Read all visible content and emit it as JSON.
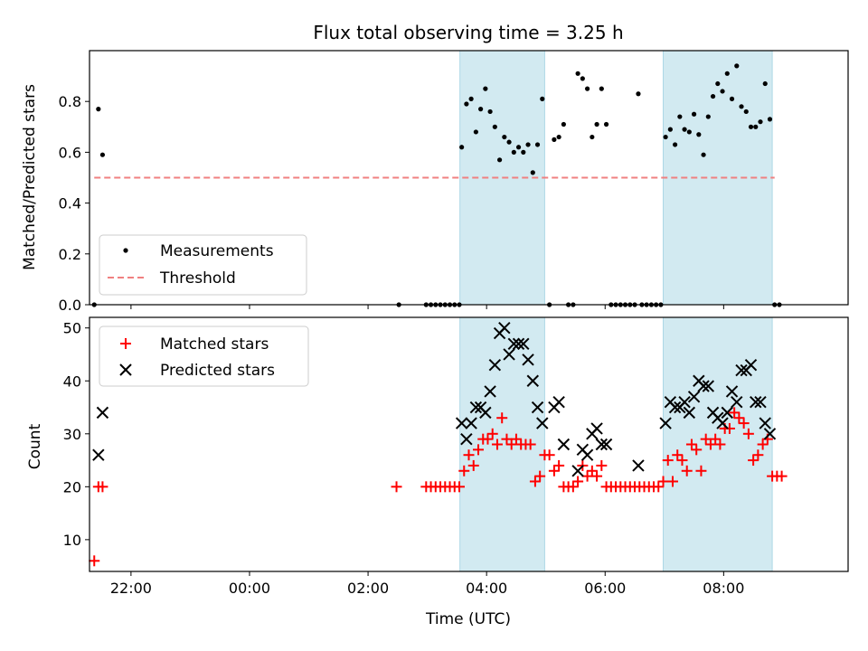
{
  "chart_data": [
    {
      "type": "scatter",
      "title": "Flux total observing time = 3.25 h",
      "ylabel": "Matched/Predicted stars",
      "xlabel": "",
      "xlim": [
        -2.7,
        10.1
      ],
      "ylim": [
        0,
        1.0
      ],
      "y_ticks": [
        0.0,
        0.2,
        0.4,
        0.6,
        0.8
      ],
      "y_tick_labels": [
        "0.0",
        "0.2",
        "0.4",
        "0.6",
        "0.8"
      ],
      "x_ticks": [
        -2,
        0,
        2,
        4,
        6,
        8
      ],
      "grid": false,
      "legend": {
        "placement": "lower-left"
      },
      "shaded_intervals": [
        [
          3.55,
          4.98
        ],
        [
          6.98,
          8.82
        ]
      ],
      "shade_color": "#add8e6",
      "series": [
        {
          "name": "Measurements",
          "marker": "dot",
          "color": "#000000",
          "x": [
            -2.62,
            -2.55,
            -2.48,
            2.52,
            2.98,
            3.06,
            3.14,
            3.22,
            3.3,
            3.38,
            3.46,
            3.54,
            3.58,
            3.66,
            3.74,
            3.82,
            3.9,
            3.98,
            4.06,
            4.14,
            4.22,
            4.3,
            4.38,
            4.46,
            4.54,
            4.62,
            4.7,
            4.78,
            4.86,
            4.94,
            5.06,
            5.14,
            5.22,
            5.3,
            5.38,
            5.46,
            5.54,
            5.62,
            5.7,
            5.78,
            5.86,
            5.94,
            6.02,
            6.1,
            6.18,
            6.26,
            6.34,
            6.42,
            6.5,
            6.56,
            6.62,
            6.7,
            6.78,
            6.86,
            6.94,
            7.02,
            7.1,
            7.18,
            7.26,
            7.34,
            7.42,
            7.5,
            7.58,
            7.66,
            7.74,
            7.82,
            7.9,
            7.98,
            8.06,
            8.14,
            8.22,
            8.3,
            8.38,
            8.46,
            8.54,
            8.62,
            8.7,
            8.78,
            8.86,
            8.94
          ],
          "y": [
            0.0,
            0.77,
            0.59,
            0.0,
            0.0,
            0.0,
            0.0,
            0.0,
            0.0,
            0.0,
            0.0,
            0.0,
            0.62,
            0.79,
            0.81,
            0.68,
            0.77,
            0.85,
            0.76,
            0.7,
            0.57,
            0.66,
            0.64,
            0.6,
            0.62,
            0.6,
            0.63,
            0.52,
            0.63,
            0.81,
            0.0,
            0.65,
            0.66,
            0.71,
            0.0,
            0.0,
            0.91,
            0.89,
            0.85,
            0.66,
            0.71,
            0.85,
            0.71,
            0.0,
            0.0,
            0.0,
            0.0,
            0.0,
            0.0,
            0.83,
            0.0,
            0.0,
            0.0,
            0.0,
            0.0,
            0.66,
            0.69,
            0.63,
            0.74,
            0.69,
            0.68,
            0.75,
            0.67,
            0.59,
            0.74,
            0.82,
            0.87,
            0.84,
            0.91,
            0.81,
            0.94,
            0.78,
            0.76,
            0.7,
            0.7,
            0.72,
            0.87,
            0.73,
            0.0,
            0.0
          ]
        },
        {
          "name": "Threshold",
          "marker": "dashed-line",
          "color": "#f08080",
          "x": [
            -2.62,
            8.86
          ],
          "y": [
            0.5,
            0.5
          ]
        }
      ]
    },
    {
      "type": "scatter",
      "title": "",
      "ylabel": "Count",
      "xlabel": "Time (UTC)",
      "xlim": [
        -2.7,
        10.1
      ],
      "ylim": [
        4,
        52
      ],
      "y_ticks": [
        10,
        20,
        30,
        40,
        50
      ],
      "y_tick_labels": [
        "10",
        "20",
        "30",
        "40",
        "50"
      ],
      "x_ticks": [
        -2,
        0,
        2,
        4,
        6,
        8
      ],
      "x_tick_labels": [
        "22:00",
        "00:00",
        "02:00",
        "04:00",
        "06:00",
        "08:00"
      ],
      "grid": false,
      "legend": {
        "placement": "upper-left"
      },
      "shaded_intervals": [
        [
          3.55,
          4.98
        ],
        [
          6.98,
          8.82
        ]
      ],
      "shade_color": "#add8e6",
      "series": [
        {
          "name": "Matched stars",
          "marker": "plus",
          "color": "#ff0000",
          "x": [
            -2.62,
            -2.55,
            -2.48,
            2.48,
            2.98,
            3.06,
            3.14,
            3.22,
            3.3,
            3.38,
            3.46,
            3.54,
            3.62,
            3.7,
            3.78,
            3.86,
            3.94,
            4.02,
            4.1,
            4.18,
            4.26,
            4.34,
            4.42,
            4.5,
            4.58,
            4.66,
            4.74,
            4.82,
            4.9,
            4.98,
            5.06,
            5.14,
            5.22,
            5.3,
            5.38,
            5.46,
            5.54,
            5.62,
            5.7,
            5.78,
            5.86,
            5.94,
            6.02,
            6.1,
            6.18,
            6.26,
            6.34,
            6.42,
            6.5,
            6.58,
            6.66,
            6.74,
            6.82,
            6.9,
            6.98,
            7.06,
            7.14,
            7.22,
            7.3,
            7.38,
            7.46,
            7.54,
            7.62,
            7.7,
            7.78,
            7.86,
            7.94,
            8.02,
            8.1,
            8.18,
            8.26,
            8.34,
            8.42,
            8.5,
            8.58,
            8.66,
            8.74,
            8.82,
            8.9,
            8.98
          ],
          "y": [
            6,
            20,
            20,
            20,
            20,
            20,
            20,
            20,
            20,
            20,
            20,
            20,
            23,
            26,
            24,
            27,
            29,
            29,
            30,
            28,
            33,
            29,
            28,
            29,
            28,
            28,
            28,
            21,
            22,
            26,
            26,
            23,
            24,
            20,
            20,
            20,
            21,
            24,
            22,
            23,
            22,
            24,
            20,
            20,
            20,
            20,
            20,
            20,
            20,
            20,
            20,
            20,
            20,
            20,
            21,
            25,
            21,
            26,
            25,
            23,
            28,
            27,
            23,
            29,
            28,
            29,
            28,
            31,
            31,
            34,
            33,
            32,
            30,
            25,
            26,
            28,
            29,
            22,
            22,
            22
          ]
        },
        {
          "name": "Predicted stars",
          "marker": "x",
          "color": "#000000",
          "x": [
            -2.55,
            -2.48,
            3.58,
            3.66,
            3.74,
            3.82,
            3.9,
            3.98,
            4.06,
            4.14,
            4.22,
            4.3,
            4.38,
            4.46,
            4.54,
            4.62,
            4.7,
            4.78,
            4.86,
            4.94,
            5.14,
            5.22,
            5.3,
            5.54,
            5.62,
            5.7,
            5.78,
            5.86,
            5.94,
            6.02,
            6.56,
            7.02,
            7.1,
            7.18,
            7.26,
            7.34,
            7.42,
            7.5,
            7.58,
            7.66,
            7.74,
            7.82,
            7.9,
            7.98,
            8.06,
            8.14,
            8.22,
            8.3,
            8.38,
            8.46,
            8.54,
            8.62,
            8.7,
            8.78
          ],
          "y": [
            26,
            34,
            32,
            29,
            32,
            35,
            35,
            34,
            38,
            43,
            49,
            50,
            45,
            47,
            47,
            47,
            44,
            40,
            35,
            32,
            35,
            36,
            28,
            23,
            27,
            26,
            30,
            31,
            28,
            28,
            24,
            32,
            36,
            35,
            35,
            36,
            34,
            37,
            40,
            39,
            39,
            34,
            33,
            32,
            34,
            38,
            36,
            42,
            42,
            43,
            36,
            36,
            32,
            30
          ]
        }
      ]
    }
  ]
}
